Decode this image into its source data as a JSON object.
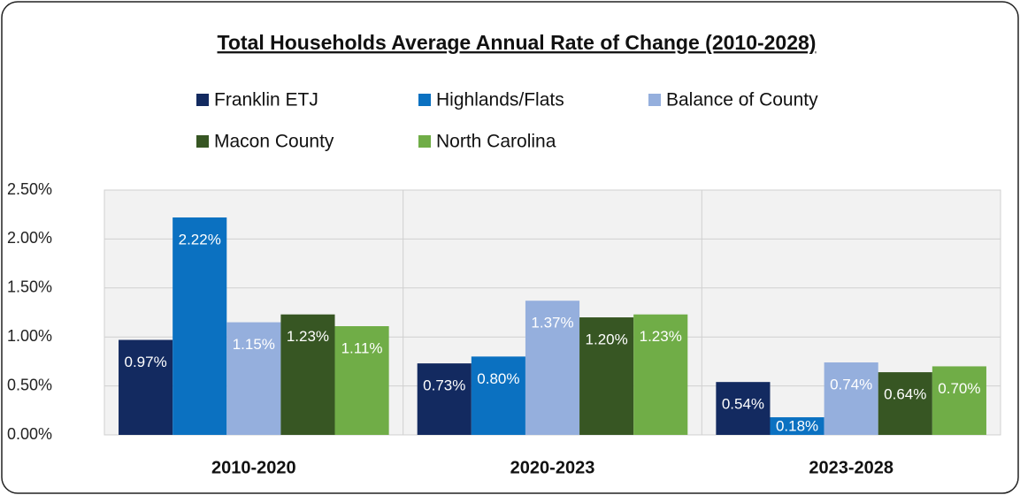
{
  "chart_data": {
    "type": "bar",
    "title": "Total Households Average Annual Rate of Change (2010-2028)",
    "categories": [
      "2010-2020",
      "2020-2023",
      "2023-2028"
    ],
    "series": [
      {
        "name": "Franklin ETJ",
        "color": "#132a60",
        "values": [
          0.97,
          0.73,
          0.54
        ],
        "value_labels": [
          "0.97%",
          "0.73%",
          "0.54%"
        ]
      },
      {
        "name": "Highlands/Flats",
        "color": "#0b71c1",
        "values": [
          2.22,
          0.8,
          0.18
        ],
        "value_labels": [
          "2.22%",
          "0.80%",
          "0.18%"
        ]
      },
      {
        "name": "Balance of County",
        "color": "#95afdd",
        "values": [
          1.15,
          1.37,
          0.74
        ],
        "value_labels": [
          "1.15%",
          "1.37%",
          "0.74%"
        ]
      },
      {
        "name": "Macon County",
        "color": "#375623",
        "values": [
          1.23,
          1.2,
          0.64
        ],
        "value_labels": [
          "1.23%",
          "1.20%",
          "0.64%"
        ]
      },
      {
        "name": "North Carolina",
        "color": "#70ad47",
        "values": [
          1.11,
          1.23,
          0.7
        ],
        "value_labels": [
          "1.11%",
          "1.23%",
          "0.70%"
        ]
      }
    ],
    "ylim": [
      0,
      2.5
    ],
    "yticks": [
      {
        "value": 0,
        "label": "0.00%"
      },
      {
        "value": 0.5,
        "label": "0.50%"
      },
      {
        "value": 1,
        "label": "1.00%"
      },
      {
        "value": 1.5,
        "label": "1.50%"
      },
      {
        "value": 2,
        "label": "2.00%"
      },
      {
        "value": 2.5,
        "label": "2.50%"
      }
    ],
    "grid": true
  }
}
